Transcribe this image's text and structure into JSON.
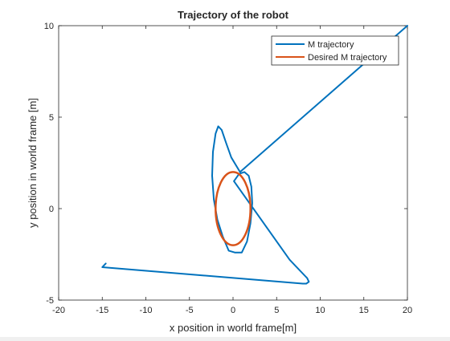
{
  "chart_data": {
    "type": "line",
    "title": "Trajectory of the robot",
    "xlabel": "x position in world frame[m]",
    "ylabel": "y position in world frame [m]",
    "xlim": [
      -20,
      20
    ],
    "ylim": [
      -5,
      10
    ],
    "xticks": [
      -20,
      -15,
      -10,
      -5,
      0,
      5,
      10,
      15,
      20
    ],
    "yticks": [
      -5,
      0,
      5,
      10
    ],
    "grid": false,
    "legend_position": "top-right",
    "series": [
      {
        "name": "M trajectory",
        "color": "#0072bd",
        "x": [
          20,
          0.8,
          -0.2,
          -0.8,
          -1.3,
          -1.7,
          -2.0,
          -2.3,
          -2.4,
          -2.2,
          -1.8,
          -1.2,
          -0.5,
          0.2,
          1.0,
          1.6,
          2.0,
          2.2,
          2.1,
          1.8,
          1.3,
          0.7,
          0.1,
          6.5,
          8.5,
          8.7,
          8.4,
          8.0,
          -15.0,
          -14.6
        ],
        "y": [
          10,
          2.0,
          2.8,
          3.6,
          4.3,
          4.5,
          4.1,
          3.1,
          1.8,
          0.5,
          -0.6,
          -1.5,
          -2.3,
          -2.4,
          -2.4,
          -1.8,
          -0.8,
          0.3,
          1.2,
          1.8,
          2.0,
          1.9,
          1.5,
          -2.8,
          -3.8,
          -4.0,
          -4.1,
          -4.1,
          -3.2,
          -3.0
        ]
      },
      {
        "name": "Desired M trajectory",
        "color": "#d95319",
        "shape": "ellipse",
        "center": [
          0,
          0
        ],
        "radius_x": 2,
        "radius_y": 2
      }
    ]
  }
}
